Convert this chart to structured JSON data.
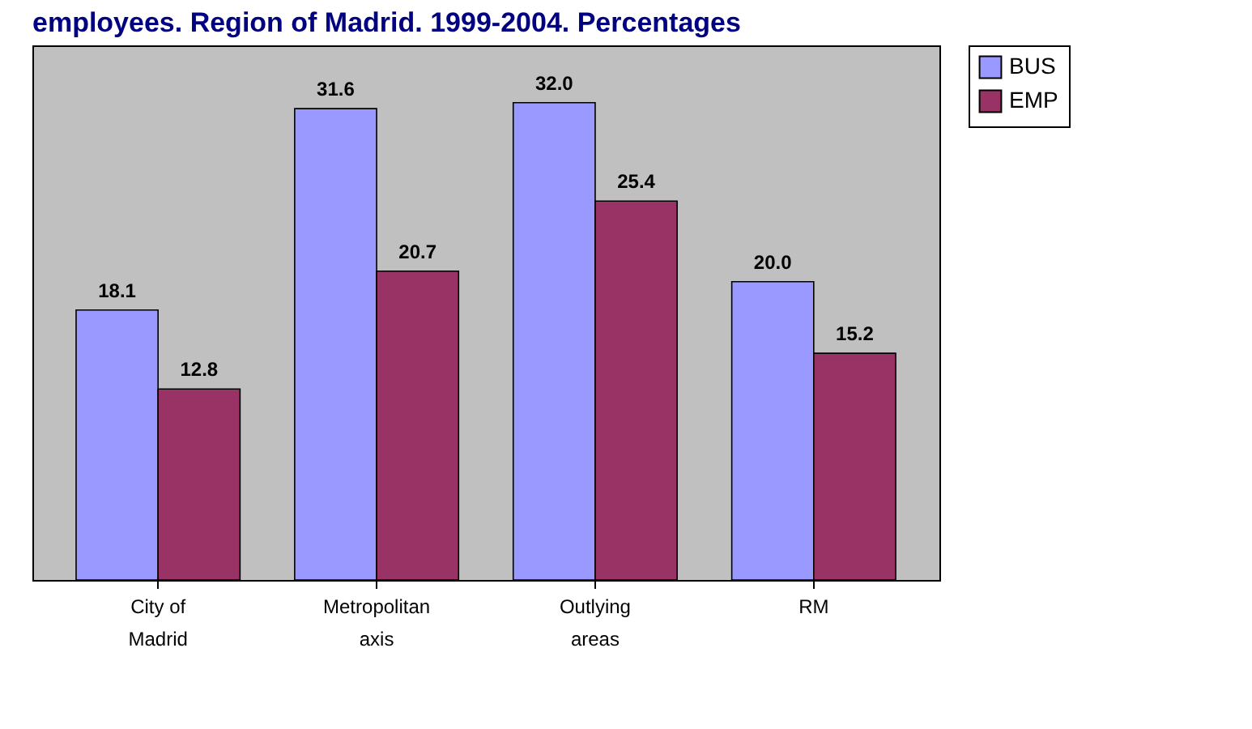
{
  "chart_data": {
    "type": "bar",
    "title": "employees. Region of Madrid. 1999-2004. Percentages",
    "categories": [
      "City of Madrid",
      "Metropolitan axis",
      "Outlying areas",
      "RM"
    ],
    "series": [
      {
        "name": "BUS",
        "color": "#9999ff",
        "values": [
          18.1,
          31.6,
          32.0,
          20.0
        ],
        "value_labels": [
          "18.1",
          "31.6",
          "32.0",
          "20.0"
        ]
      },
      {
        "name": "EMP",
        "color": "#993366",
        "values": [
          12.8,
          20.7,
          25.4,
          15.2
        ],
        "value_labels": [
          "12.8",
          "20.7",
          "25.4",
          "15.2"
        ]
      }
    ],
    "legend": "right",
    "grid": false
  }
}
